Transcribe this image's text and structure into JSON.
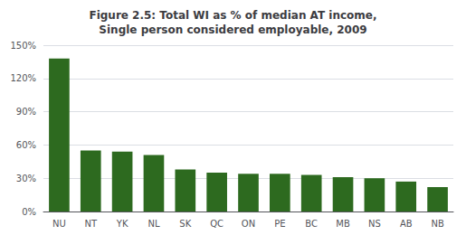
{
  "chart_data": {
    "type": "bar",
    "title": "Figure 2.5: Total WI as % of median AT income,\nSingle person considered employable, 2009",
    "categories": [
      "NU",
      "NT",
      "YK",
      "NL",
      "SK",
      "QC",
      "ON",
      "PE",
      "BC",
      "MB",
      "NS",
      "AB",
      "NB"
    ],
    "values": [
      138,
      55,
      54,
      51,
      38,
      35,
      34,
      34,
      33,
      31,
      30,
      27,
      22
    ],
    "color": "#2d6a1f",
    "ylim": [
      0,
      150
    ],
    "yticks": [
      {
        "value": 0,
        "label": "0%"
      },
      {
        "value": 30,
        "label": "30%"
      },
      {
        "value": 60,
        "label": "60%"
      },
      {
        "value": 90,
        "label": "90%"
      },
      {
        "value": 120,
        "label": "120%"
      },
      {
        "value": 150,
        "label": "150%"
      }
    ],
    "grid": true
  }
}
